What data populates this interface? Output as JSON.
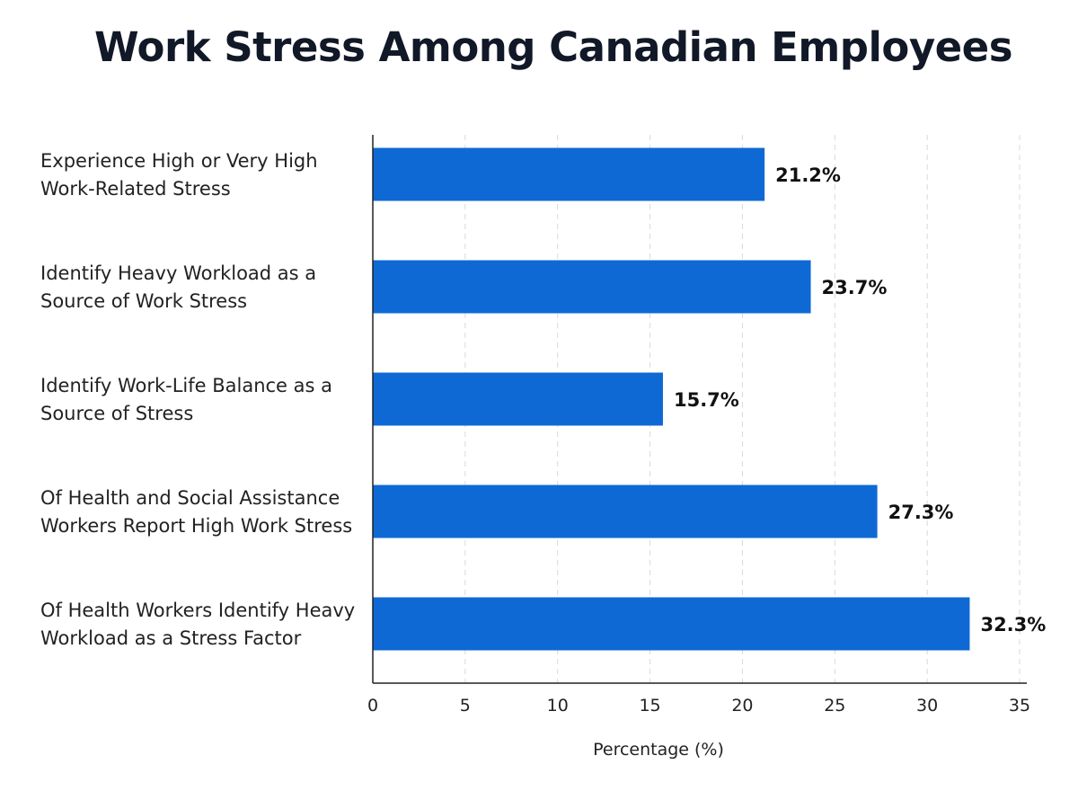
{
  "chart_data": {
    "type": "bar",
    "orientation": "horizontal",
    "title": "Work Stress Among Canadian Employees",
    "xlabel": "Percentage (%)",
    "ylabel": "",
    "xlim": [
      0,
      35
    ],
    "xticks": [
      0,
      5,
      10,
      15,
      20,
      25,
      30,
      35
    ],
    "grid": "vertical dashed",
    "categories": [
      [
        "Experience High or Very High",
        "Work-Related Stress"
      ],
      [
        "Identify Heavy Workload as a",
        "Source of Work Stress"
      ],
      [
        "Identify Work-Life Balance as a",
        "Source of Stress"
      ],
      [
        "Of Health and Social Assistance",
        "Workers Report High Work Stress"
      ],
      [
        "Of Health Workers Identify Heavy",
        "Workload as a Stress Factor"
      ]
    ],
    "values": [
      21.2,
      23.7,
      15.7,
      27.3,
      32.3
    ],
    "value_labels": [
      "21.2%",
      "23.7%",
      "15.7%",
      "27.3%",
      "32.3%"
    ],
    "bar_color": "#0f69d4"
  }
}
